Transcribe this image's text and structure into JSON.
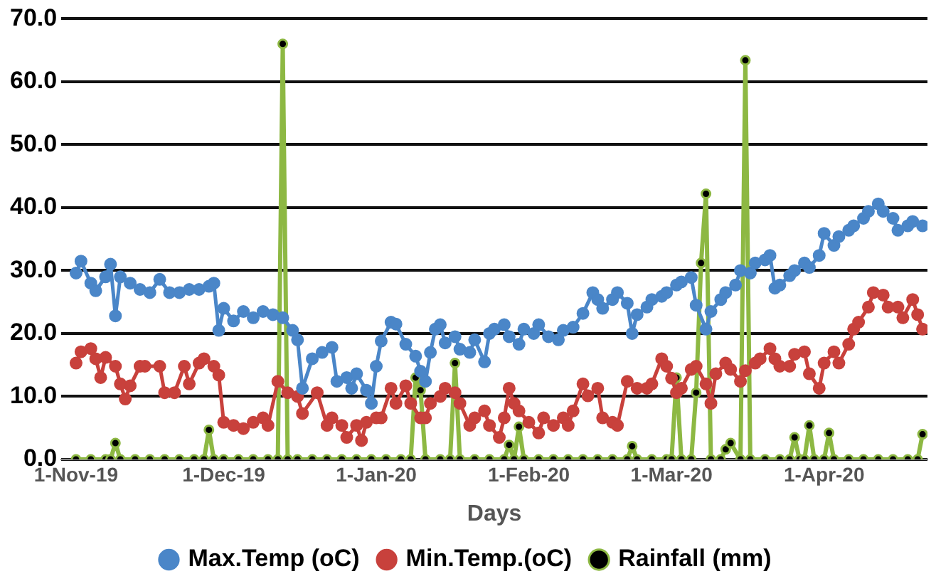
{
  "chart_data": {
    "type": "line",
    "xlabel": "Days",
    "xlim": [
      "2019-10-29",
      "2020-04-22"
    ],
    "xticks": [
      {
        "value": "2019-11-01",
        "label": "1-Nov-19"
      },
      {
        "value": "2019-12-01",
        "label": "1-Dec-19"
      },
      {
        "value": "2020-01-01",
        "label": "1-Jan-20"
      },
      {
        "value": "2020-02-01",
        "label": "1-Feb-20"
      },
      {
        "value": "2020-03-01",
        "label": "1-Mar-20"
      },
      {
        "value": "2020-04-01",
        "label": "1-Apr-20"
      }
    ],
    "ylim": [
      0,
      70
    ],
    "yticks": [
      {
        "value": 0,
        "label": "0.0"
      },
      {
        "value": 10,
        "label": "10.0"
      },
      {
        "value": 20,
        "label": "20.0"
      },
      {
        "value": 30,
        "label": "30.0"
      },
      {
        "value": 40,
        "label": "40.0"
      },
      {
        "value": 50,
        "label": "50.0"
      },
      {
        "value": 60,
        "label": "60.0"
      },
      {
        "value": 70,
        "label": "70.0"
      }
    ],
    "grid": "y",
    "legend": "bottom",
    "marker": "circle",
    "series": [
      {
        "name": "Max.Temp (oC)",
        "color": "#4a86c8",
        "x": [
          "2019-11-01",
          "2019-11-02",
          "2019-11-04",
          "2019-11-05",
          "2019-11-07",
          "2019-11-08",
          "2019-11-09",
          "2019-11-10",
          "2019-11-12",
          "2019-11-14",
          "2019-11-16",
          "2019-11-18",
          "2019-11-20",
          "2019-11-22",
          "2019-11-24",
          "2019-11-26",
          "2019-11-28",
          "2019-11-29",
          "2019-11-30",
          "2019-12-01",
          "2019-12-03",
          "2019-12-05",
          "2019-12-07",
          "2019-12-09",
          "2019-12-11",
          "2019-12-13",
          "2019-12-15",
          "2019-12-16",
          "2019-12-17",
          "2019-12-19",
          "2019-12-21",
          "2019-12-23",
          "2019-12-24",
          "2019-12-26",
          "2019-12-27",
          "2019-12-28",
          "2019-12-30",
          "2019-12-31",
          "2020-01-01",
          "2020-01-02",
          "2020-01-04",
          "2020-01-05",
          "2020-01-07",
          "2020-01-09",
          "2020-01-10",
          "2020-01-11",
          "2020-01-12",
          "2020-01-13",
          "2020-01-14",
          "2020-01-15",
          "2020-01-17",
          "2020-01-18",
          "2020-01-20",
          "2020-01-21",
          "2020-01-23",
          "2020-01-24",
          "2020-01-25",
          "2020-01-27",
          "2020-01-28",
          "2020-01-30",
          "2020-01-31",
          "2020-02-02",
          "2020-02-03",
          "2020-02-05",
          "2020-02-07",
          "2020-02-08",
          "2020-02-10",
          "2020-02-12",
          "2020-02-14",
          "2020-02-15",
          "2020-02-16",
          "2020-02-18",
          "2020-02-19",
          "2020-02-21",
          "2020-02-22",
          "2020-02-23",
          "2020-02-25",
          "2020-02-26",
          "2020-02-28",
          "2020-02-29",
          "2020-03-02",
          "2020-03-03",
          "2020-03-05",
          "2020-03-06",
          "2020-03-08",
          "2020-03-09",
          "2020-03-11",
          "2020-03-12",
          "2020-03-14",
          "2020-03-15",
          "2020-03-17",
          "2020-03-18",
          "2020-03-20",
          "2020-03-21",
          "2020-03-22",
          "2020-03-23",
          "2020-03-25",
          "2020-03-26",
          "2020-03-28",
          "2020-03-29",
          "2020-03-31",
          "2020-04-01",
          "2020-04-03",
          "2020-04-04",
          "2020-04-06",
          "2020-04-07",
          "2020-04-09",
          "2020-04-10",
          "2020-04-12",
          "2020-04-13",
          "2020-04-15",
          "2020-04-16",
          "2020-04-18",
          "2020-04-19",
          "2020-04-21"
        ],
        "values": [
          29.6,
          31.5,
          28,
          26.8,
          29,
          31,
          22.8,
          29,
          28,
          27,
          26.5,
          28.6,
          26.5,
          26.5,
          27,
          27,
          27.5,
          28,
          20.5,
          24,
          22,
          23.5,
          22.5,
          23.5,
          23,
          22.5,
          20.5,
          19,
          11.3,
          16,
          17,
          17.8,
          12.4,
          13,
          11.3,
          13.6,
          11,
          8.9,
          14.8,
          18.8,
          21.8,
          21.5,
          18.3,
          16.4,
          14,
          12.4,
          17,
          20.7,
          21.4,
          18.5,
          19.5,
          17.5,
          17,
          19,
          15.5,
          20,
          20.7,
          21.4,
          19.5,
          18.3,
          20.7,
          20,
          21.4,
          19.5,
          19,
          20.5,
          21,
          23.2,
          26.5,
          25.4,
          24,
          25.4,
          26.5,
          24.8,
          20,
          23,
          24.2,
          25.4,
          25.9,
          26.5,
          27.7,
          28.2,
          28.9,
          24.5,
          20.7,
          23.5,
          25.4,
          26.5,
          27.7,
          30,
          29.6,
          31.2,
          31.7,
          32.4,
          27.2,
          27.7,
          29.2,
          30,
          31.2,
          30.5,
          32.4,
          35.9,
          34,
          35.4,
          36.4,
          37.1,
          38.3,
          39.4,
          40.6,
          39.4,
          38.3,
          36.4,
          37.1,
          37.8,
          37.1
        ]
      },
      {
        "name": "Min.Temp.(oC)",
        "color": "#c8413c",
        "x": [
          "2019-11-01",
          "2019-11-02",
          "2019-11-04",
          "2019-11-05",
          "2019-11-06",
          "2019-11-07",
          "2019-11-09",
          "2019-11-10",
          "2019-11-11",
          "2019-11-12",
          "2019-11-14",
          "2019-11-15",
          "2019-11-18",
          "2019-11-19",
          "2019-11-21",
          "2019-11-23",
          "2019-11-24",
          "2019-11-26",
          "2019-11-27",
          "2019-11-29",
          "2019-11-30",
          "2019-12-01",
          "2019-12-03",
          "2019-12-05",
          "2019-12-07",
          "2019-12-09",
          "2019-12-10",
          "2019-12-12",
          "2019-12-14",
          "2019-12-16",
          "2019-12-17",
          "2019-12-20",
          "2019-12-22",
          "2019-12-23",
          "2019-12-25",
          "2019-12-26",
          "2019-12-28",
          "2019-12-29",
          "2019-12-30",
          "2020-01-01",
          "2020-01-02",
          "2020-01-04",
          "2020-01-05",
          "2020-01-07",
          "2020-01-08",
          "2020-01-10",
          "2020-01-11",
          "2020-01-12",
          "2020-01-14",
          "2020-01-15",
          "2020-01-17",
          "2020-01-18",
          "2020-01-20",
          "2020-01-21",
          "2020-01-23",
          "2020-01-24",
          "2020-01-26",
          "2020-01-27",
          "2020-01-28",
          "2020-01-29",
          "2020-01-30",
          "2020-02-01",
          "2020-02-03",
          "2020-02-04",
          "2020-02-06",
          "2020-02-08",
          "2020-02-09",
          "2020-02-10",
          "2020-02-12",
          "2020-02-13",
          "2020-02-15",
          "2020-02-16",
          "2020-02-18",
          "2020-02-19",
          "2020-02-21",
          "2020-02-23",
          "2020-02-25",
          "2020-02-26",
          "2020-02-28",
          "2020-02-29",
          "2020-03-01",
          "2020-03-02",
          "2020-03-03",
          "2020-03-05",
          "2020-03-06",
          "2020-03-08",
          "2020-03-09",
          "2020-03-10",
          "2020-03-12",
          "2020-03-13",
          "2020-03-15",
          "2020-03-16",
          "2020-03-18",
          "2020-03-19",
          "2020-03-21",
          "2020-03-22",
          "2020-03-23",
          "2020-03-25",
          "2020-03-26",
          "2020-03-28",
          "2020-03-29",
          "2020-03-31",
          "2020-04-01",
          "2020-04-03",
          "2020-04-04",
          "2020-04-06",
          "2020-04-07",
          "2020-04-08",
          "2020-04-10",
          "2020-04-11",
          "2020-04-13",
          "2020-04-14",
          "2020-04-16",
          "2020-04-17",
          "2020-04-19",
          "2020-04-20",
          "2020-04-21"
        ],
        "values": [
          15.3,
          17.1,
          17.6,
          16,
          13,
          16.2,
          14.8,
          12,
          9.6,
          11.7,
          14.8,
          14.8,
          14.8,
          10.6,
          10.6,
          14.8,
          12,
          15.3,
          16,
          14.8,
          13.4,
          5.9,
          5.4,
          4.9,
          5.9,
          6.6,
          5.4,
          12.4,
          10.6,
          10,
          7.3,
          10.6,
          5.4,
          6.6,
          5.4,
          3.5,
          5.4,
          3,
          5.9,
          6.6,
          6.6,
          11.3,
          8.9,
          11.7,
          8.9,
          6.6,
          6.6,
          8.9,
          10,
          11.3,
          10.6,
          8.9,
          5.4,
          6.6,
          7.7,
          5.4,
          3.5,
          6.6,
          11.3,
          8.9,
          7.7,
          5.9,
          4.2,
          6.6,
          5.4,
          6.6,
          5.4,
          7.7,
          12,
          10.1,
          11.3,
          6.6,
          5.9,
          5.4,
          12.4,
          11.3,
          11.3,
          12,
          16,
          14.8,
          12.9,
          10.6,
          11.3,
          14.3,
          14.8,
          12,
          8.9,
          13.6,
          15.3,
          14.3,
          12.4,
          14.1,
          15.3,
          16,
          17.6,
          16,
          14.8,
          14.8,
          16.7,
          17.1,
          13.6,
          11.3,
          15.3,
          17.1,
          15.3,
          18.3,
          20.7,
          21.8,
          24.2,
          26.5,
          26.1,
          24.2,
          24.2,
          22.5,
          25.4,
          23,
          20.7
        ]
      },
      {
        "name": "Rainfall (mm)",
        "color": "#8db843",
        "x": [
          "2019-11-01",
          "2019-11-04",
          "2019-11-07",
          "2019-11-08",
          "2019-11-09",
          "2019-11-10",
          "2019-11-13",
          "2019-11-16",
          "2019-11-19",
          "2019-11-22",
          "2019-11-25",
          "2019-11-27",
          "2019-11-28",
          "2019-11-29",
          "2019-12-01",
          "2019-12-04",
          "2019-12-07",
          "2019-12-10",
          "2019-12-12",
          "2019-12-13",
          "2019-12-14",
          "2019-12-16",
          "2019-12-19",
          "2019-12-22",
          "2019-12-25",
          "2019-12-28",
          "2019-12-31",
          "2020-01-03",
          "2020-01-06",
          "2020-01-08",
          "2020-01-09",
          "2020-01-10",
          "2020-01-11",
          "2020-01-14",
          "2020-01-16",
          "2020-01-17",
          "2020-01-18",
          "2020-01-21",
          "2020-01-24",
          "2020-01-27",
          "2020-01-28",
          "2020-01-29",
          "2020-01-30",
          "2020-01-31",
          "2020-02-03",
          "2020-02-06",
          "2020-02-09",
          "2020-02-12",
          "2020-02-15",
          "2020-02-18",
          "2020-02-21",
          "2020-02-22",
          "2020-02-23",
          "2020-02-26",
          "2020-02-29",
          "2020-03-01",
          "2020-03-02",
          "2020-03-03",
          "2020-03-05",
          "2020-03-06",
          "2020-03-07",
          "2020-03-08",
          "2020-03-09",
          "2020-03-11",
          "2020-03-12",
          "2020-03-13",
          "2020-03-15",
          "2020-03-16",
          "2020-03-17",
          "2020-03-20",
          "2020-03-23",
          "2020-03-25",
          "2020-03-26",
          "2020-03-27",
          "2020-03-28",
          "2020-03-29",
          "2020-03-30",
          "2020-04-01",
          "2020-04-02",
          "2020-04-03",
          "2020-04-06",
          "2020-04-09",
          "2020-04-12",
          "2020-04-15",
          "2020-04-18",
          "2020-04-20",
          "2020-04-21"
        ],
        "values": [
          0,
          0,
          0,
          0,
          2.6,
          0,
          0,
          0,
          0,
          0,
          0,
          0,
          4.7,
          0,
          0,
          0,
          0,
          0,
          0,
          66,
          0,
          0,
          0,
          0,
          0,
          0,
          0,
          0,
          0,
          0,
          13,
          11,
          0,
          0,
          0,
          15.3,
          0,
          0,
          0,
          0,
          2.3,
          0,
          5.2,
          0,
          0,
          0,
          0,
          0,
          0,
          0,
          0,
          2.1,
          0,
          0,
          0,
          0,
          13,
          0,
          0,
          10.6,
          31.2,
          42.2,
          0,
          0,
          1.6,
          2.6,
          0,
          63.4,
          0,
          0,
          0,
          0,
          3.5,
          0,
          0,
          5.4,
          0,
          0,
          4.2,
          0,
          0,
          0,
          0,
          0,
          0,
          0,
          4
        ]
      }
    ]
  }
}
